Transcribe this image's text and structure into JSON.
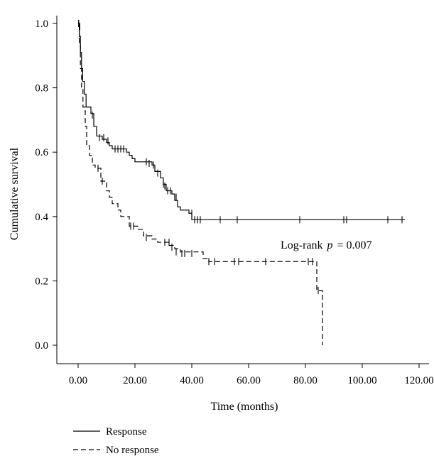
{
  "chart_data": {
    "type": "line",
    "title": "",
    "xlabel": "Time (months)",
    "ylabel": "Cumulative survival",
    "xlim": [
      -5,
      122
    ],
    "ylim": [
      0.0,
      1.02
    ],
    "x_ticks": [
      0,
      20,
      40,
      60,
      80,
      100,
      120
    ],
    "x_tick_labels": [
      "0.00",
      "20.00",
      "40.00",
      "60.00",
      "80.00",
      "100.00",
      "120.00"
    ],
    "y_ticks": [
      0.0,
      0.2,
      0.4,
      0.6,
      0.8,
      1.0
    ],
    "y_tick_labels": [
      "0.0",
      "0.2",
      "0.4",
      "0.6",
      "0.8",
      "1.0"
    ],
    "grid": false,
    "legend_position": "bottom-left",
    "annotation": {
      "prefix": "Log-rank",
      "p_symbol": "p",
      "suffix": "= 0.007"
    },
    "series": [
      {
        "name": "Response",
        "line_style": "solid",
        "steps": [
          [
            0,
            1.0
          ],
          [
            0.4,
            0.96
          ],
          [
            0.8,
            0.91
          ],
          [
            1.2,
            0.86
          ],
          [
            1.6,
            0.82
          ],
          [
            2.2,
            0.78
          ],
          [
            2.8,
            0.74
          ],
          [
            4.5,
            0.72
          ],
          [
            5.5,
            0.68
          ],
          [
            6.5,
            0.65
          ],
          [
            8.5,
            0.64
          ],
          [
            10,
            0.63
          ],
          [
            11,
            0.62
          ],
          [
            12,
            0.61
          ],
          [
            17,
            0.6
          ],
          [
            18,
            0.59
          ],
          [
            19,
            0.58
          ],
          [
            20,
            0.57
          ],
          [
            26,
            0.56
          ],
          [
            27,
            0.54
          ],
          [
            29,
            0.52
          ],
          [
            30,
            0.5
          ],
          [
            31,
            0.48
          ],
          [
            33,
            0.47
          ],
          [
            34,
            0.45
          ],
          [
            35,
            0.43
          ],
          [
            36,
            0.42
          ],
          [
            39,
            0.41
          ],
          [
            40,
            0.39
          ],
          [
            115,
            0.39
          ]
        ],
        "censored": [
          [
            0.2,
            1.0
          ],
          [
            0.4,
            0.99
          ],
          [
            5,
            0.715
          ],
          [
            7.5,
            0.645
          ],
          [
            9,
            0.645
          ],
          [
            10.5,
            0.635
          ],
          [
            13,
            0.61
          ],
          [
            14,
            0.61
          ],
          [
            15,
            0.61
          ],
          [
            16,
            0.61
          ],
          [
            24,
            0.57
          ],
          [
            25,
            0.565
          ],
          [
            26.5,
            0.56
          ],
          [
            28,
            0.535
          ],
          [
            30,
            0.5
          ],
          [
            30.5,
            0.495
          ],
          [
            31.5,
            0.48
          ],
          [
            32.5,
            0.48
          ],
          [
            34.5,
            0.46
          ],
          [
            40,
            0.41
          ],
          [
            41,
            0.39
          ],
          [
            42,
            0.39
          ],
          [
            43,
            0.39
          ],
          [
            50,
            0.39
          ],
          [
            56,
            0.39
          ],
          [
            78,
            0.39
          ],
          [
            93.5,
            0.39
          ],
          [
            94.5,
            0.39
          ],
          [
            109,
            0.39
          ],
          [
            114,
            0.39
          ]
        ]
      },
      {
        "name": "No response",
        "line_style": "dashed",
        "steps": [
          [
            0,
            1.0
          ],
          [
            0.4,
            0.94
          ],
          [
            0.8,
            0.86
          ],
          [
            1.2,
            0.8
          ],
          [
            1.7,
            0.74
          ],
          [
            2.5,
            0.68
          ],
          [
            3,
            0.62
          ],
          [
            4,
            0.59
          ],
          [
            5,
            0.56
          ],
          [
            6,
            0.55
          ],
          [
            8,
            0.51
          ],
          [
            10,
            0.48
          ],
          [
            11,
            0.46
          ],
          [
            12,
            0.44
          ],
          [
            14,
            0.42
          ],
          [
            15,
            0.4
          ],
          [
            18,
            0.37
          ],
          [
            21,
            0.36
          ],
          [
            23,
            0.34
          ],
          [
            26,
            0.33
          ],
          [
            28,
            0.32
          ],
          [
            32,
            0.31
          ],
          [
            34,
            0.3
          ],
          [
            36,
            0.29
          ],
          [
            44,
            0.27
          ],
          [
            46,
            0.26
          ],
          [
            84,
            0.17
          ],
          [
            86,
            0.0
          ]
        ],
        "censored": [
          [
            0.2,
            1.0
          ],
          [
            0.6,
            0.99
          ],
          [
            7,
            0.55
          ],
          [
            8.5,
            0.51
          ],
          [
            18.5,
            0.37
          ],
          [
            19.5,
            0.37
          ],
          [
            24,
            0.335
          ],
          [
            30.5,
            0.32
          ],
          [
            32,
            0.32
          ],
          [
            33,
            0.305
          ],
          [
            34.5,
            0.29
          ],
          [
            36.5,
            0.285
          ],
          [
            37.5,
            0.285
          ],
          [
            40,
            0.285
          ],
          [
            46,
            0.26
          ],
          [
            48,
            0.26
          ],
          [
            55,
            0.26
          ],
          [
            56.5,
            0.26
          ],
          [
            66,
            0.26
          ],
          [
            81,
            0.26
          ],
          [
            82.5,
            0.26
          ],
          [
            84.5,
            0.17
          ]
        ]
      }
    ]
  }
}
